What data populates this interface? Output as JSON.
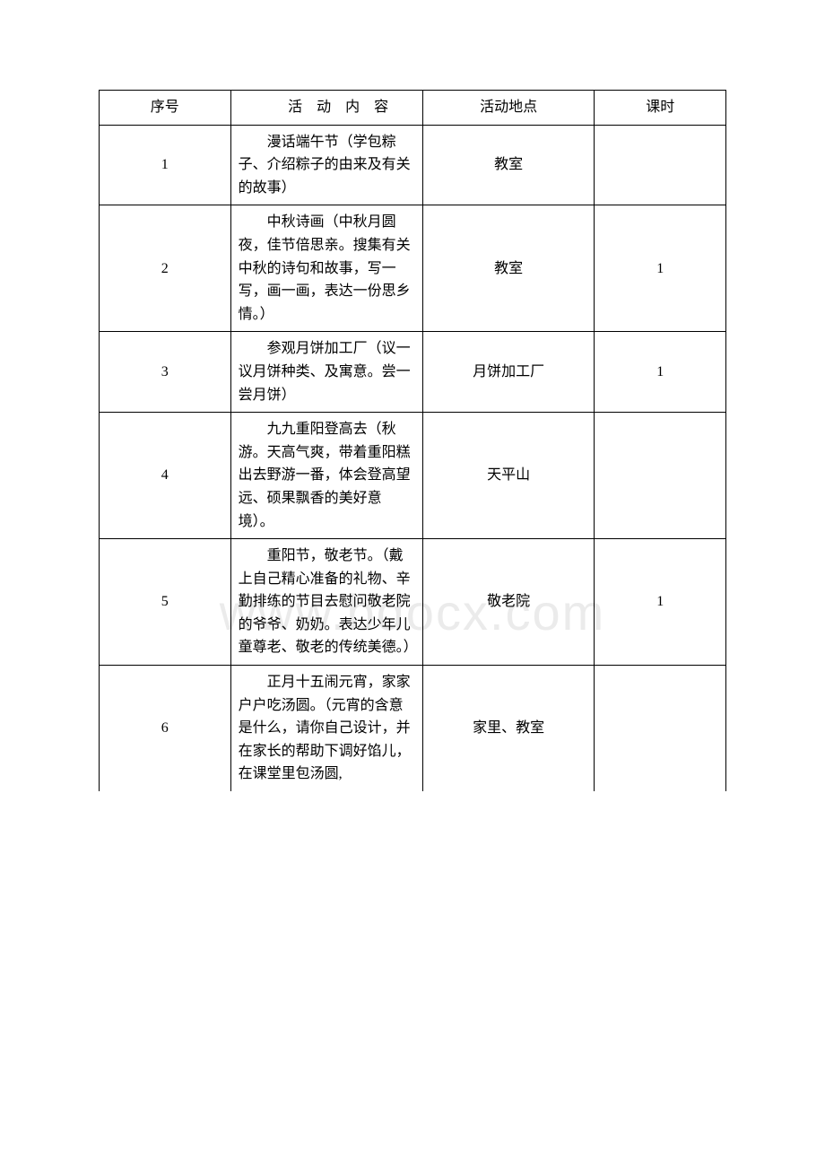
{
  "watermark": "www.bdocx.com",
  "table": {
    "background_color": "#ffffff",
    "border_color": "#000000",
    "text_color": "#000000",
    "watermark_color": "#ebebeb",
    "font_size": 16,
    "columns": [
      {
        "key": "id",
        "label": "序号"
      },
      {
        "key": "content",
        "label": "活 动 内 容"
      },
      {
        "key": "location",
        "label": "活动地点"
      },
      {
        "key": "hours",
        "label": "课时"
      }
    ],
    "rows": [
      {
        "id": "1",
        "content": "漫话端午节（学包粽子、介绍粽子的由来及有关的故事）",
        "location": "教室",
        "hours": ""
      },
      {
        "id": "2",
        "content": "中秋诗画（中秋月圆夜，佳节倍思亲。搜集有关中秋的诗句和故事，写一写，画一画，表达一份思乡情。）",
        "location": "教室",
        "hours": "1"
      },
      {
        "id": "3",
        "content": "参观月饼加工厂（议一议月饼种类、及寓意。尝一尝月饼）",
        "location": "月饼加工厂",
        "hours": "1"
      },
      {
        "id": "4",
        "content": "九九重阳登高去（秋游。天高气爽，带着重阳糕出去野游一番，体会登高望远、硕果飘香的美好意境）。",
        "location": "天平山",
        "hours": ""
      },
      {
        "id": "5",
        "content": "重阳节，敬老节。（戴上自己精心准备的礼物、辛勤排练的节目去慰问敬老院的爷爷、奶奶。表达少年儿童尊老、敬老的传统美德。）",
        "location": "敬老院",
        "hours": "1"
      },
      {
        "id": "6",
        "content": "正月十五闹元宵，家家户户吃汤圆。（元宵的含意是什么，请你自己设计，并在家长的帮助下调好馅儿，在课堂里包汤圆,",
        "location": "家里、教室",
        "hours": ""
      }
    ]
  }
}
